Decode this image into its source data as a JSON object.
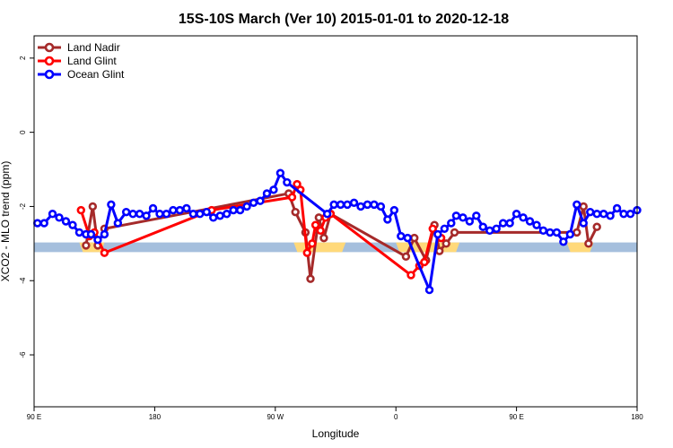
{
  "chart_data": {
    "type": "line",
    "title": "15S-10S March (Ver 10)   2015-01-01 to 2020-12-18",
    "xlabel": "Longitude",
    "ylabel": "XCO2 - MLO trend (ppm)",
    "xlim": [
      0,
      360
    ],
    "ylim": [
      -7.4,
      2.6
    ],
    "x_ticks": [
      {
        "value": 0,
        "label": "90 E"
      },
      {
        "value": 72,
        "label": "180"
      },
      {
        "value": 144,
        "label": "90 W"
      },
      {
        "value": 216,
        "label": "0"
      },
      {
        "value": 288,
        "label": "90 E"
      },
      {
        "value": 360,
        "label": "180"
      }
    ],
    "y_ticks": [
      {
        "value": 2,
        "label": "2"
      },
      {
        "value": 0,
        "label": "0"
      },
      {
        "value": -2,
        "label": "-2"
      },
      {
        "value": -4,
        "label": "-4"
      },
      {
        "value": -6,
        "label": "-6"
      }
    ],
    "legend_position": "top-left",
    "land_mask": {
      "y": -3.1,
      "half_height": 0.13,
      "ocean_color": "#a5bfdd",
      "land_color": "#ffd97a",
      "land_ranges": [
        [
          27,
          42
        ],
        [
          155,
          186
        ],
        [
          216,
          254
        ],
        [
          318,
          334
        ]
      ]
    },
    "series": [
      {
        "name": "Land Nadir",
        "color": "#a52a2a",
        "x": [
          31,
          35,
          38,
          42,
          152,
          156,
          162,
          165,
          170,
          173,
          177,
          222,
          227,
          234,
          239,
          242,
          246,
          251,
          324,
          328,
          331,
          336
        ],
        "y": [
          -3.05,
          -2.0,
          -3.05,
          -2.6,
          -1.65,
          -2.15,
          -2.7,
          -3.95,
          -2.3,
          -2.85,
          -2.2,
          -3.35,
          -2.85,
          -3.45,
          -2.5,
          -3.2,
          -3.0,
          -2.7,
          -2.7,
          -2.0,
          -3.0,
          -2.55
        ]
      },
      {
        "name": "Land Glint",
        "color": "#ff0000",
        "x": [
          28,
          33,
          36,
          42,
          106,
          154,
          157,
          159,
          163,
          166,
          168,
          171,
          174,
          177,
          225,
          230,
          233,
          238,
          243
        ],
        "y": [
          -2.1,
          -2.8,
          -2.7,
          -3.25,
          -2.1,
          -1.75,
          -1.4,
          -1.55,
          -3.25,
          -3.0,
          -2.5,
          -2.65,
          -2.3,
          -2.2,
          -3.85,
          -3.6,
          -3.5,
          -2.6,
          -2.85
        ]
      },
      {
        "name": "Ocean Glint",
        "color": "#0000ff",
        "x": [
          2,
          6,
          11,
          15,
          19,
          23,
          27,
          31,
          34,
          38,
          42,
          46,
          50,
          55,
          59,
          63,
          67,
          71,
          75,
          79,
          83,
          87,
          91,
          95,
          99,
          103,
          107,
          111,
          115,
          119,
          123,
          127,
          131,
          135,
          139,
          143,
          147,
          151,
          175,
          179,
          183,
          187,
          191,
          195,
          199,
          203,
          207,
          211,
          215,
          219,
          223,
          236,
          241,
          245,
          249,
          252,
          256,
          260,
          264,
          268,
          272,
          276,
          280,
          284,
          288,
          292,
          296,
          300,
          304,
          308,
          312,
          316,
          320,
          324,
          328,
          332,
          336,
          340,
          344,
          348,
          352,
          356,
          360
        ],
        "y": [
          -2.45,
          -2.45,
          -2.2,
          -2.3,
          -2.4,
          -2.5,
          -2.7,
          -2.75,
          -2.75,
          -2.9,
          -2.75,
          -1.95,
          -2.45,
          -2.15,
          -2.2,
          -2.2,
          -2.25,
          -2.05,
          -2.2,
          -2.2,
          -2.1,
          -2.1,
          -2.05,
          -2.2,
          -2.2,
          -2.15,
          -2.3,
          -2.25,
          -2.2,
          -2.1,
          -2.1,
          -2.0,
          -1.9,
          -1.85,
          -1.65,
          -1.55,
          -1.1,
          -1.35,
          -2.2,
          -1.95,
          -1.95,
          -1.95,
          -1.9,
          -2.0,
          -1.95,
          -1.95,
          -2.0,
          -2.35,
          -2.1,
          -2.8,
          -2.85,
          -4.25,
          -2.75,
          -2.6,
          -2.45,
          -2.25,
          -2.3,
          -2.4,
          -2.25,
          -2.55,
          -2.65,
          -2.6,
          -2.45,
          -2.45,
          -2.2,
          -2.3,
          -2.4,
          -2.5,
          -2.65,
          -2.7,
          -2.7,
          -2.95,
          -2.75,
          -1.95,
          -2.45,
          -2.15,
          -2.2,
          -2.2,
          -2.25,
          -2.05,
          -2.2,
          -2.2,
          -2.1
        ]
      }
    ]
  }
}
